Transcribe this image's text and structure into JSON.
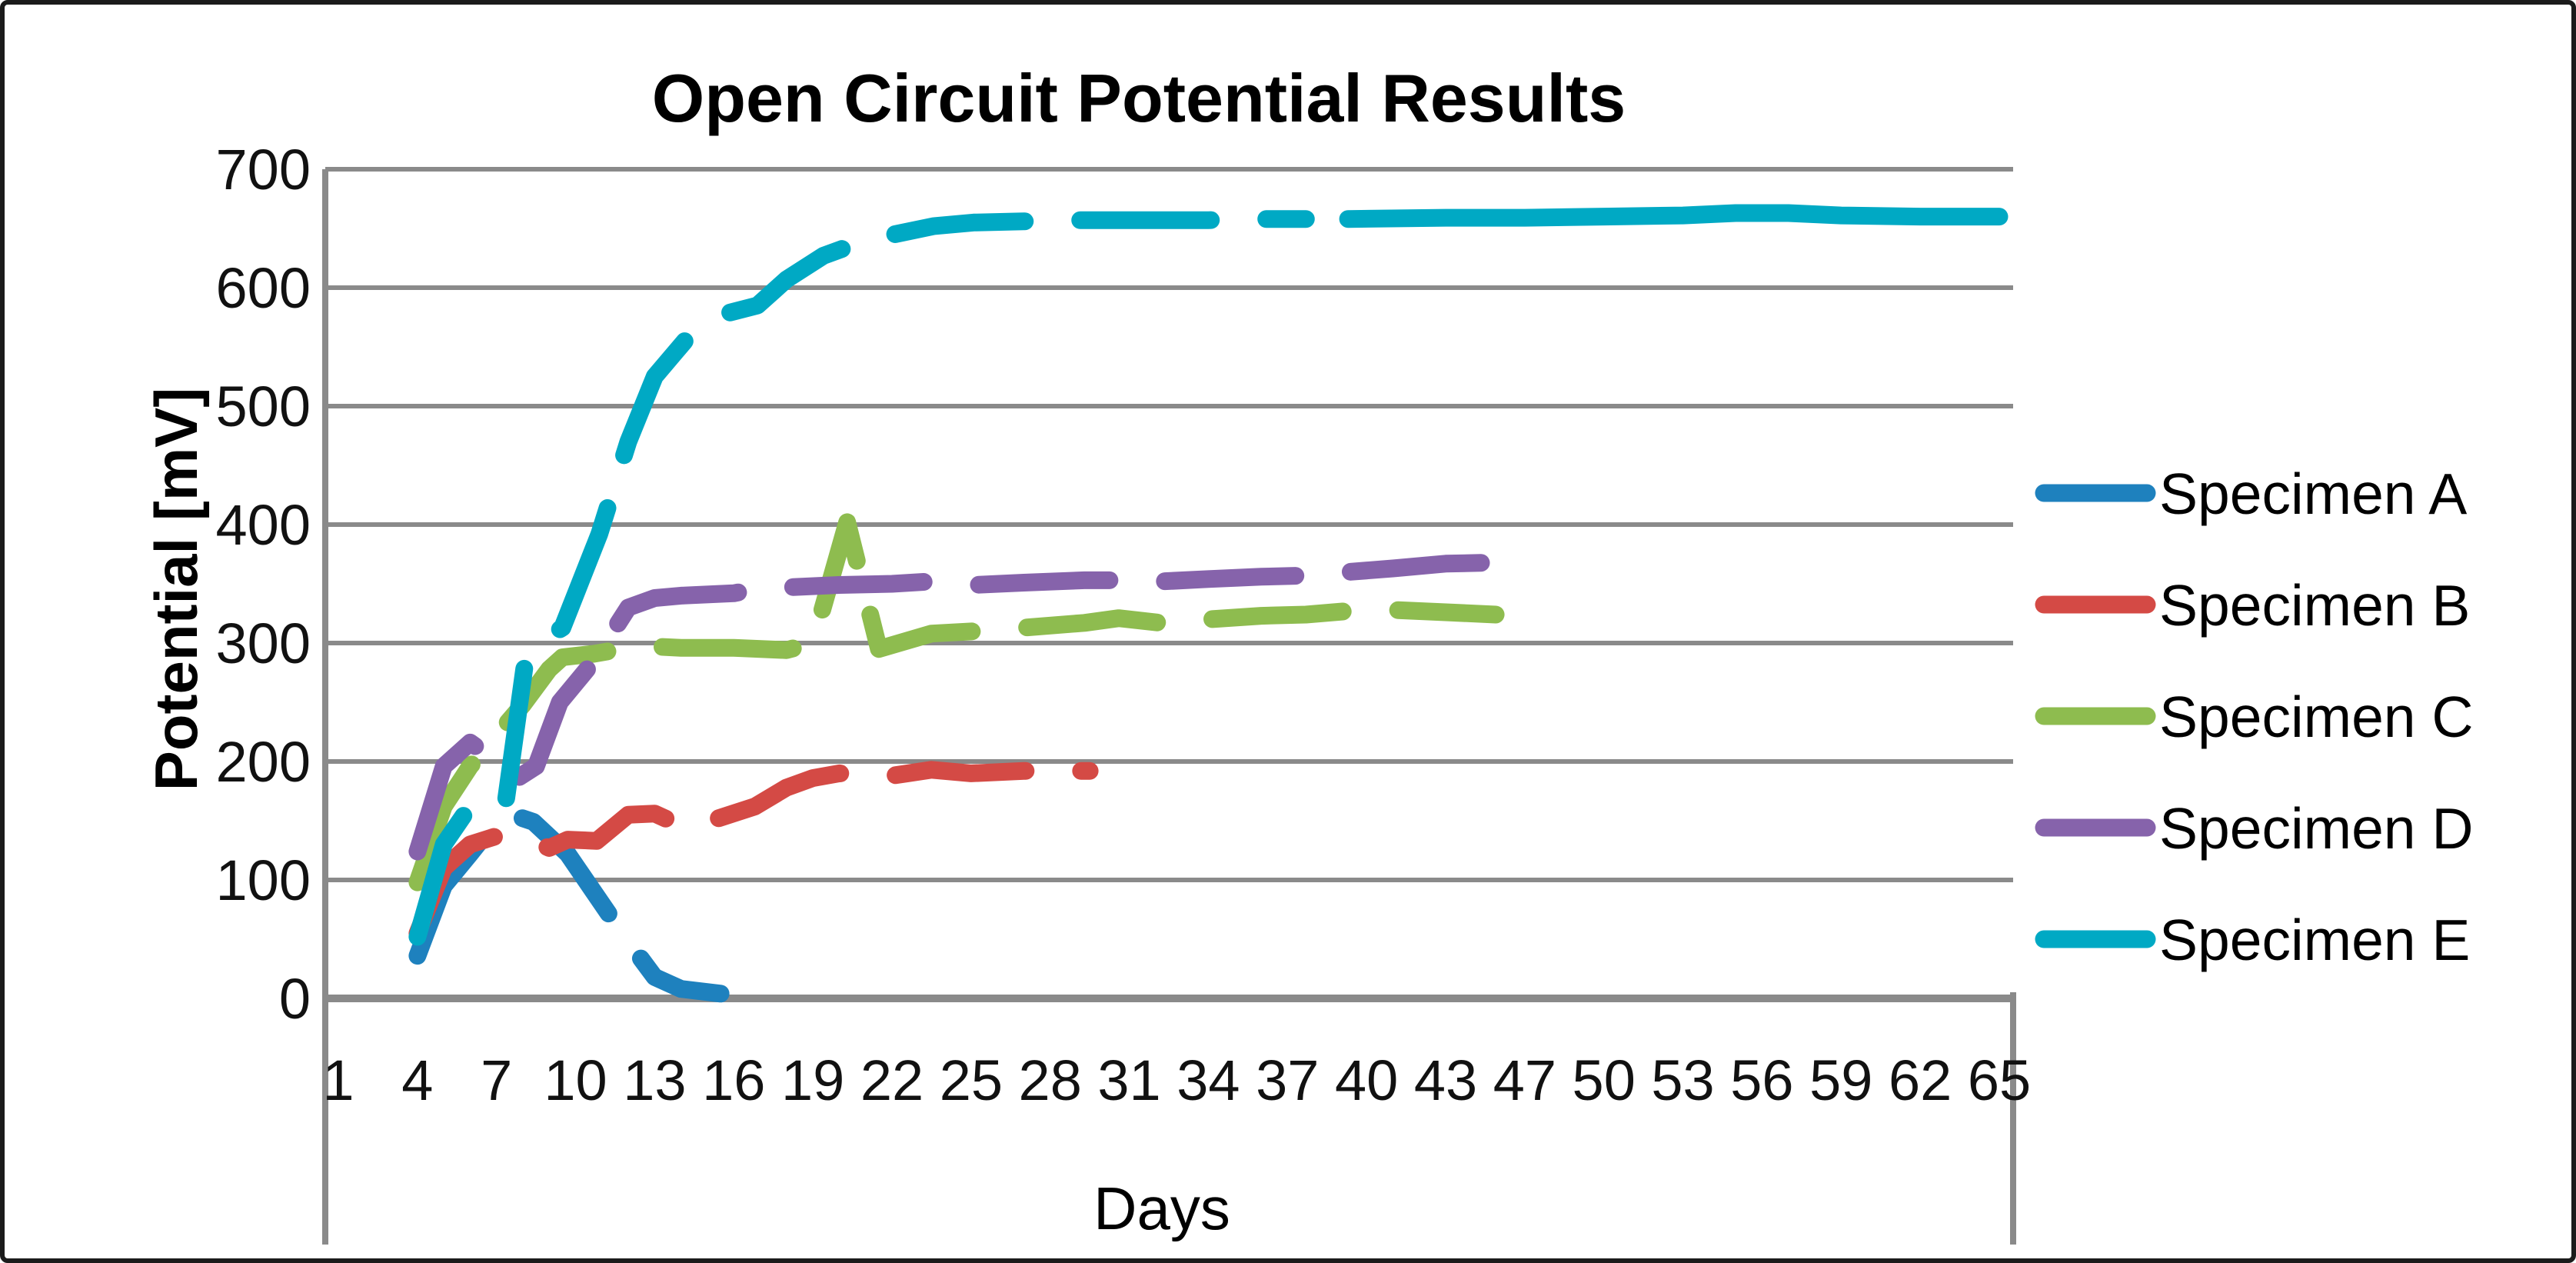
{
  "title": "Open Circuit Potential Results",
  "axes": {
    "y_label": "Potential [mV]",
    "x_label": "Days"
  },
  "colors": {
    "grid": "#8a8a8a",
    "axis": "#8a8a8a",
    "specimen_a": "#1e81be",
    "specimen_b": "#d44a45",
    "specimen_c": "#8ebc4f",
    "specimen_d": "#8663ab",
    "specimen_e": "#00a9c4"
  },
  "chart_data": {
    "type": "line",
    "title": "Open Circuit Potential Results",
    "xlabel": "Days",
    "ylabel": "Potential [mV]",
    "ylim": [
      0,
      700
    ],
    "y_ticks": [
      0,
      100,
      200,
      300,
      400,
      500,
      600,
      700
    ],
    "x_tick_labels": [
      "1",
      "4",
      "7",
      "10",
      "13",
      "16",
      "19",
      "22",
      "25",
      "28",
      "31",
      "34",
      "37",
      "40",
      "43",
      "47",
      "50",
      "53",
      "56",
      "59",
      "62",
      "65"
    ],
    "grid": "horizontal",
    "legend_position": "right",
    "line_style": "dashed",
    "series": [
      {
        "name": "Specimen A",
        "color": "#1e81be",
        "dashed": true,
        "in_legend": true,
        "points": [
          [
            4,
            36
          ],
          [
            5,
            95
          ],
          [
            6,
            122
          ],
          [
            7,
            150
          ],
          [
            7.6,
            155
          ],
          [
            8.4,
            149
          ],
          [
            9.7,
            122
          ],
          [
            11.3,
            70
          ],
          [
            12,
            48
          ],
          [
            13,
            18
          ],
          [
            14,
            8
          ],
          [
            15.5,
            4
          ]
        ]
      },
      {
        "name": "Specimen B",
        "color": "#d44a45",
        "dashed": true,
        "in_legend": true,
        "points": [
          [
            4,
            55
          ],
          [
            5,
            110
          ],
          [
            6,
            130
          ],
          [
            7,
            137
          ],
          [
            8,
            136
          ],
          [
            9,
            127
          ],
          [
            9.7,
            134
          ],
          [
            10.8,
            133
          ],
          [
            12,
            155
          ],
          [
            13,
            156
          ],
          [
            14,
            146
          ],
          [
            15,
            149
          ],
          [
            16.8,
            162
          ],
          [
            18,
            178
          ],
          [
            19,
            186
          ],
          [
            20,
            190
          ],
          [
            22,
            188
          ],
          [
            23.5,
            193
          ],
          [
            25,
            190
          ],
          [
            27,
            192
          ],
          [
            29.5,
            192
          ]
        ]
      },
      {
        "name": "Specimen C",
        "color": "#8ebc4f",
        "dashed": true,
        "in_legend": true,
        "points": [
          [
            4,
            98
          ],
          [
            5,
            162
          ],
          [
            6,
            196
          ],
          [
            7,
            222
          ],
          [
            8,
            248
          ],
          [
            9,
            278
          ],
          [
            9.5,
            288
          ],
          [
            10.7,
            291
          ],
          [
            12,
            296
          ],
          [
            13,
            297
          ],
          [
            14,
            296
          ],
          [
            16,
            296
          ],
          [
            18,
            294
          ],
          [
            19,
            300
          ],
          [
            20.3,
            402
          ],
          [
            21.5,
            295
          ],
          [
            23.5,
            308
          ],
          [
            25.2,
            310
          ],
          [
            27,
            313
          ],
          [
            29.3,
            317
          ],
          [
            30.6,
            321
          ],
          [
            32.2,
            317
          ],
          [
            34,
            320
          ],
          [
            36,
            323
          ],
          [
            37.7,
            324
          ],
          [
            39.3,
            327
          ],
          [
            41,
            328
          ],
          [
            43,
            326
          ],
          [
            44.9,
            324
          ]
        ]
      },
      {
        "name": "Specimen D",
        "color": "#8663ab",
        "dashed": true,
        "in_legend": true,
        "points": [
          [
            4,
            124
          ],
          [
            5,
            196
          ],
          [
            6,
            216
          ],
          [
            7,
            200
          ],
          [
            7.8,
            186
          ],
          [
            8.5,
            196
          ],
          [
            9.4,
            250
          ],
          [
            10.7,
            285
          ],
          [
            12,
            330
          ],
          [
            13,
            338
          ],
          [
            14,
            340
          ],
          [
            16,
            342
          ],
          [
            16.9,
            346
          ],
          [
            18,
            347
          ],
          [
            20,
            349
          ],
          [
            22,
            350
          ],
          [
            23.5,
            352
          ],
          [
            25.1,
            349
          ],
          [
            27,
            351
          ],
          [
            29.3,
            353
          ],
          [
            30.6,
            353
          ],
          [
            32.2,
            352
          ],
          [
            34,
            354
          ],
          [
            36,
            356
          ],
          [
            37.7,
            357
          ],
          [
            39.3,
            360
          ],
          [
            41,
            363
          ],
          [
            43,
            367
          ],
          [
            44.9,
            368
          ]
        ]
      },
      {
        "name": "Specimen E",
        "color": "#00a9c4",
        "dashed": true,
        "in_legend": true,
        "points": [
          [
            4,
            52
          ],
          [
            5,
            130
          ],
          [
            5.8,
            156
          ],
          [
            7.3,
            158
          ],
          [
            8.1,
            286
          ],
          [
            9,
            306
          ],
          [
            9.5,
            313
          ],
          [
            10.9,
            392
          ],
          [
            12,
            470
          ],
          [
            13,
            525
          ],
          [
            14.6,
            567
          ],
          [
            15.5,
            577
          ],
          [
            16.9,
            585
          ],
          [
            18,
            607
          ],
          [
            19.4,
            627
          ],
          [
            21,
            640
          ],
          [
            23.6,
            652
          ],
          [
            25.1,
            655
          ],
          [
            27,
            656
          ],
          [
            29,
            657
          ],
          [
            30.6,
            657
          ],
          [
            32.2,
            657
          ],
          [
            34,
            657
          ],
          [
            36,
            658
          ],
          [
            37.7,
            658
          ]
        ]
      },
      {
        "name": "Specimen E",
        "color": "#00a9c4",
        "dashed": false,
        "in_legend": false,
        "points": [
          [
            39.3,
            658
          ],
          [
            43,
            659
          ],
          [
            47,
            659
          ],
          [
            50,
            660
          ],
          [
            53,
            661
          ],
          [
            55,
            663
          ],
          [
            57,
            663
          ],
          [
            59,
            661
          ],
          [
            62,
            660
          ],
          [
            65,
            660
          ]
        ]
      }
    ]
  }
}
